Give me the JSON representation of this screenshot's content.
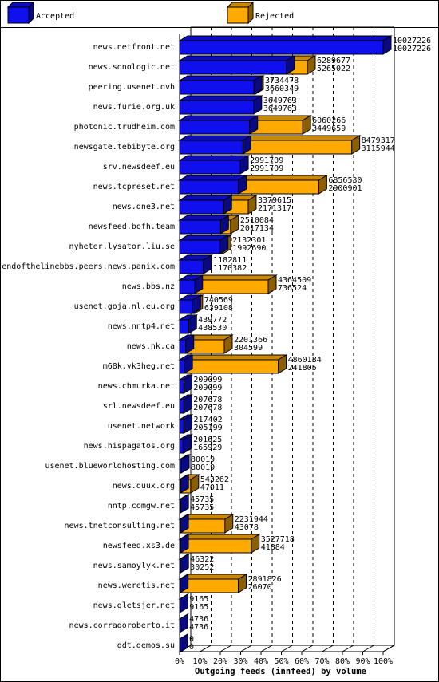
{
  "chart_data": {
    "type": "bar",
    "orientation": "horizontal",
    "stacked": "overlay",
    "xlabel": "Outgoing feeds (innfeed) by volume",
    "x_ticks": [
      "0%",
      "10%",
      "20%",
      "30%",
      "40%",
      "50%",
      "60%",
      "70%",
      "80%",
      "90%",
      "100%"
    ],
    "xlim": [
      0,
      100
    ],
    "max_value": 10027226,
    "grid": "vertical dashed",
    "legend": "top",
    "categories": [
      "news.netfront.net",
      "news.sonologic.net",
      "peering.usenet.ovh",
      "news.furie.org.uk",
      "photonic.trudheim.com",
      "newsgate.tebibyte.org",
      "srv.newsdeef.eu",
      "news.tcpreset.net",
      "news.dne3.net",
      "newsfeed.bofh.team",
      "nyheter.lysator.liu.se",
      "endofthelinebbs.peers.news.panix.com",
      "news.bbs.nz",
      "usenet.goja.nl.eu.org",
      "news.nntp4.net",
      "news.nk.ca",
      "m68k.vk3heg.net",
      "news.chmurka.net",
      "srl.newsdeef.eu",
      "usenet.network",
      "news.hispagatos.org",
      "usenet.blueworldhosting.com",
      "news.quux.org",
      "nntp.comgw.net",
      "news.tnetconsulting.net",
      "newsfeed.xs3.de",
      "news.samoylyk.net",
      "news.weretis.net",
      "news.gletsjer.net",
      "news.corradoroberto.it",
      "ddt.demos.su"
    ],
    "series": [
      {
        "name": "Accepted",
        "color": "#1010ee",
        "values": [
          10027226,
          5265022,
          3660349,
          3649763,
          3449659,
          3115944,
          2991709,
          2900901,
          2171317,
          2017134,
          1992690,
          1170382,
          736524,
          639108,
          438530,
          304599,
          241805,
          209099,
          207678,
          205199,
          165929,
          80019,
          47011,
          45735,
          43078,
          41884,
          30252,
          26070,
          9165,
          4736,
          0
        ]
      },
      {
        "name": "Rejected",
        "color": "#ffaa00",
        "values": [
          10027226,
          6289677,
          3734478,
          3649763,
          6060266,
          8479317,
          2991709,
          6856530,
          3379615,
          2510084,
          2132301,
          1182811,
          4364509,
          740569,
          439772,
          2201366,
          4860184,
          209099,
          207678,
          217402,
          201625,
          80019,
          543262,
          45735,
          2231944,
          3527718,
          46322,
          2891826,
          9165,
          4736,
          0
        ]
      }
    ]
  }
}
